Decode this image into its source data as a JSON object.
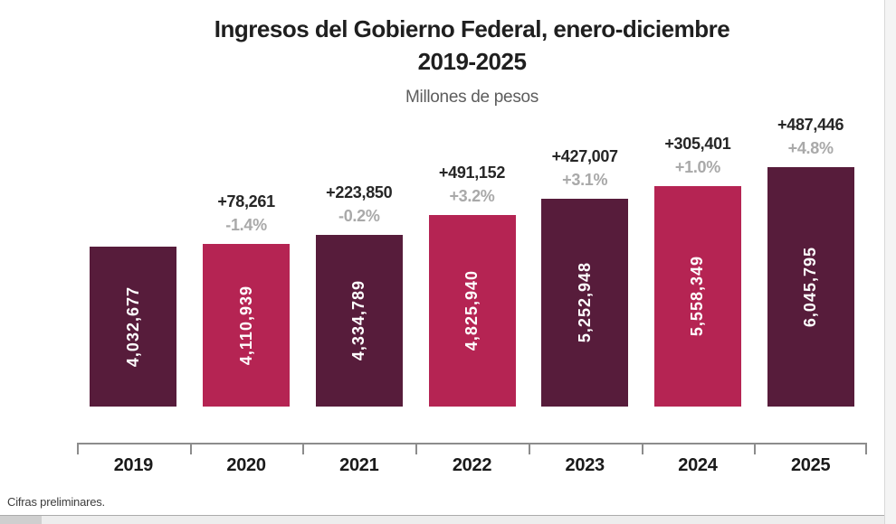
{
  "chart_data": {
    "type": "bar",
    "title": "Ingresos del Gobierno Federal, enero-diciembre",
    "title_years": "2019-2025",
    "units_label": "Millones de pesos",
    "footnote": "Cifras preliminares.",
    "categories": [
      "2019",
      "2020",
      "2021",
      "2022",
      "2023",
      "2024",
      "2025"
    ],
    "values": [
      4032677,
      4110939,
      4334789,
      4825940,
      5252948,
      5558349,
      6045795
    ],
    "ylim": [
      0,
      6045795
    ],
    "grid": false,
    "legend": "none",
    "bars": [
      {
        "year": "2019",
        "value": 4032677,
        "value_label": "4,032,677",
        "delta_label": "",
        "pct_label": "",
        "color": "#571c3b"
      },
      {
        "year": "2020",
        "value": 4110939,
        "value_label": "4,110,939",
        "delta_label": "+78,261",
        "pct_label": "-1.4%",
        "color": "#b52453"
      },
      {
        "year": "2021",
        "value": 4334789,
        "value_label": "4,334,789",
        "delta_label": "+223,850",
        "pct_label": "-0.2%",
        "color": "#571c3b"
      },
      {
        "year": "2022",
        "value": 4825940,
        "value_label": "4,825,940",
        "delta_label": "+491,152",
        "pct_label": "+3.2%",
        "color": "#b52453"
      },
      {
        "year": "2023",
        "value": 5252948,
        "value_label": "5,252,948",
        "delta_label": "+427,007",
        "pct_label": "+3.1%",
        "color": "#571c3b"
      },
      {
        "year": "2024",
        "value": 5558349,
        "value_label": "5,558,349",
        "delta_label": "+305,401",
        "pct_label": "+1.0%",
        "color": "#b52453"
      },
      {
        "year": "2025",
        "value": 6045795,
        "value_label": "6,045,795",
        "delta_label": "+487,446",
        "pct_label": "+4.8%",
        "color": "#571c3b"
      }
    ],
    "colors": {
      "bar_dark": "#571c3b",
      "bar_crimson": "#b52453",
      "delta_text": "#262626",
      "pct_text": "#a9a9a9",
      "axis": "#8c8c8c",
      "title_text": "#1f1f1f",
      "units_text": "#5d5d5d",
      "bar_value_text": "#ffffff"
    }
  }
}
